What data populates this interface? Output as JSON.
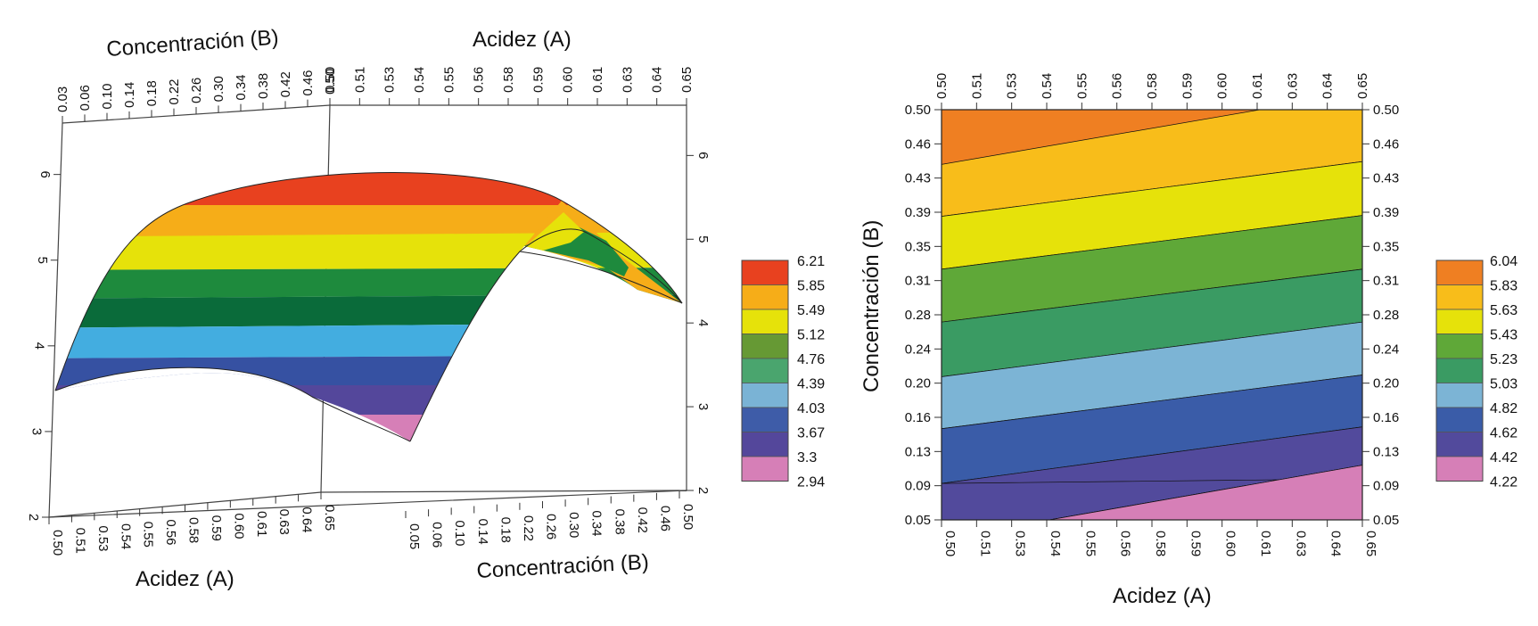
{
  "chart_data": [
    {
      "type": "surface3d",
      "title": "",
      "x_label_top": "Acidez (A)",
      "y_label_top": "Concentración (B)",
      "x_label_bottom": "Acidez (A)",
      "y_label_bottom": "Concentración (B)",
      "acidez_ticks": [
        "0.50",
        "0.51",
        "0.53",
        "0.54",
        "0.55",
        "0.56",
        "0.58",
        "0.59",
        "0.60",
        "0.61",
        "0.63",
        "0.64",
        "0.65"
      ],
      "conc_ticks": [
        "0.03",
        "0.06",
        "0.10",
        "0.14",
        "0.18",
        "0.22",
        "0.26",
        "0.30",
        "0.34",
        "0.38",
        "0.42",
        "0.46",
        "0.50"
      ],
      "conc_ticks_bottom": [
        "0.05",
        "0.06",
        "0.10",
        "0.14",
        "0.18",
        "0.22",
        "0.26",
        "0.30",
        "0.34",
        "0.38",
        "0.42",
        "0.46",
        "0.50"
      ],
      "z_ticks": [
        "2",
        "3",
        "4",
        "5",
        "6"
      ],
      "zlim": [
        2,
        6.6
      ],
      "legend_levels": [
        "6.21",
        "5.85",
        "5.49",
        "5.12",
        "4.76",
        "4.39",
        "4.03",
        "3.67",
        "3.3",
        "2.94"
      ],
      "legend_colors": [
        "#e8411f",
        "#f6ad18",
        "#e6e20a",
        "#669934",
        "#4aa56e",
        "#7ab3d5",
        "#3e5ca8",
        "#54479b",
        "#d67fb7",
        "#ffffff"
      ]
    },
    {
      "type": "contour",
      "title": "",
      "xlabel": "Acidez (A)",
      "ylabel": "Concentración (B)",
      "x_ticks": [
        "0.50",
        "0.51",
        "0.53",
        "0.54",
        "0.55",
        "0.56",
        "0.58",
        "0.59",
        "0.60",
        "0.61",
        "0.63",
        "0.64",
        "0.65"
      ],
      "y_ticks": [
        "0.50",
        "0.46",
        "0.43",
        "0.39",
        "0.35",
        "0.31",
        "0.28",
        "0.24",
        "0.20",
        "0.16",
        "0.13",
        "0.09",
        "0.05"
      ],
      "xlim": [
        0.5,
        0.65
      ],
      "ylim": [
        0.05,
        0.5
      ],
      "legend_levels": [
        "6.04",
        "5.83",
        "5.63",
        "5.43",
        "5.23",
        "5.03",
        "4.82",
        "4.62",
        "4.42",
        "4.22"
      ],
      "legend_colors": [
        "#ef7f22",
        "#f8bd1a",
        "#e6e20a",
        "#5fa838",
        "#3a9b63",
        "#7cb4d5",
        "#3a5ca8",
        "#524a9c",
        "#d67fb7",
        "#ffffff"
      ]
    }
  ]
}
